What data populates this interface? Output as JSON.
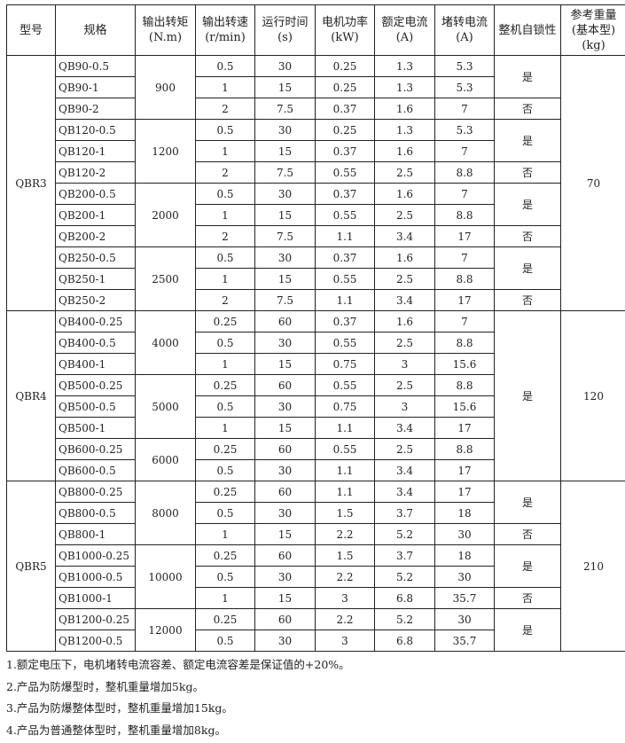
{
  "headers": [
    "型号",
    "规格",
    "输出转矩\n(N.m)",
    "输出转速\n(r/min)",
    "运行时间\n(s)",
    "电机功率\n(kW)",
    "额定电流\n(A)",
    "堵转电流\n(A)",
    "整机自锁性",
    "参考重量\n(基本型)\n(kg)"
  ],
  "rows": [
    [
      "QB90-0.5",
      "0.5",
      "30",
      "0.25",
      "1.3",
      "5.3"
    ],
    [
      "QB90-1",
      "1",
      "15",
      "0.25",
      "1.3",
      "5.3"
    ],
    [
      "QB90-2",
      "2",
      "7.5",
      "0.37",
      "1.6",
      "7"
    ],
    [
      "QB120-0.5",
      "0.5",
      "30",
      "0.25",
      "1.3",
      "5.3"
    ],
    [
      "QB120-1",
      "1",
      "15",
      "0.37",
      "1.6",
      "7"
    ],
    [
      "QB120-2",
      "2",
      "7.5",
      "0.55",
      "2.5",
      "8.8"
    ],
    [
      "QB200-0.5",
      "0.5",
      "30",
      "0.37",
      "1.6",
      "7"
    ],
    [
      "QB200-1",
      "1",
      "15",
      "0.55",
      "2.5",
      "8.8"
    ],
    [
      "QB200-2",
      "2",
      "7.5",
      "1.1",
      "3.4",
      "17"
    ],
    [
      "QB250-0.5",
      "0.5",
      "30",
      "0.37",
      "1.6",
      "7"
    ],
    [
      "QB250-1",
      "1",
      "15",
      "0.55",
      "2.5",
      "8.8"
    ],
    [
      "QB250-2",
      "2",
      "7.5",
      "1.1",
      "3.4",
      "17"
    ],
    [
      "QB400-0.25",
      "0.25",
      "60",
      "0.37",
      "1.6",
      "7"
    ],
    [
      "QB400-0.5",
      "0.5",
      "30",
      "0.55",
      "2.5",
      "8.8"
    ],
    [
      "QB400-1",
      "1",
      "15",
      "0.75",
      "3",
      "15.6"
    ],
    [
      "QB500-0.25",
      "0.25",
      "60",
      "0.55",
      "2.5",
      "8.8"
    ],
    [
      "QB500-0.5",
      "0.5",
      "30",
      "0.75",
      "3",
      "15.6"
    ],
    [
      "QB500-1",
      "1",
      "15",
      "1.1",
      "3.4",
      "17"
    ],
    [
      "QB600-0.25",
      "0.25",
      "60",
      "0.55",
      "2.5",
      "8.8"
    ],
    [
      "QB600-0.5",
      "0.5",
      "30",
      "1.1",
      "3.4",
      "17"
    ],
    [
      "QB800-0.25",
      "0.25",
      "60",
      "1.1",
      "3.4",
      "17"
    ],
    [
      "QB800-0.5",
      "0.5",
      "30",
      "1.5",
      "3.7",
      "18"
    ],
    [
      "QB800-1",
      "1",
      "15",
      "2.2",
      "5.2",
      "30"
    ],
    [
      "QB1000-0.25",
      "0.25",
      "60",
      "1.5",
      "3.7",
      "18"
    ],
    [
      "QB1000-0.5",
      "0.5",
      "30",
      "2.2",
      "5.2",
      "30"
    ],
    [
      "QB1000-1",
      "1",
      "15",
      "3",
      "6.8",
      "35.7"
    ],
    [
      "QB1200-0.25",
      "0.25",
      "60",
      "2.2",
      "5.2",
      "30"
    ],
    [
      "QB1200-0.5",
      "0.5",
      "30",
      "3",
      "6.8",
      "35.7"
    ]
  ],
  "models": [
    {
      "value": "QBR3",
      "span": 12
    },
    {
      "value": "QBR4",
      "span": 8
    },
    {
      "value": "QBR5",
      "span": 8
    }
  ],
  "torques": [
    {
      "value": "900",
      "span": 3
    },
    {
      "value": "1200",
      "span": 3
    },
    {
      "value": "2000",
      "span": 3
    },
    {
      "value": "2500",
      "span": 3
    },
    {
      "value": "4000",
      "span": 3
    },
    {
      "value": "5000",
      "span": 3
    },
    {
      "value": "6000",
      "span": 2
    },
    {
      "value": "8000",
      "span": 3
    },
    {
      "value": "10000",
      "span": 3
    },
    {
      "value": "12000",
      "span": 2
    }
  ],
  "locks": [
    {
      "value": "是",
      "span": 2
    },
    {
      "value": "否",
      "span": 1
    },
    {
      "value": "是",
      "span": 2
    },
    {
      "value": "否",
      "span": 1
    },
    {
      "value": "是",
      "span": 2
    },
    {
      "value": "否",
      "span": 1
    },
    {
      "value": "是",
      "span": 2
    },
    {
      "value": "否",
      "span": 1
    },
    {
      "value": "是",
      "span": 8
    },
    {
      "value": "是",
      "span": 2
    },
    {
      "value": "否",
      "span": 1
    },
    {
      "value": "是",
      "span": 2
    },
    {
      "value": "否",
      "span": 1
    },
    {
      "value": "是",
      "span": 2
    }
  ],
  "weights": [
    {
      "value": "70",
      "span": 12
    },
    {
      "value": "120",
      "span": 8
    },
    {
      "value": "210",
      "span": 8
    }
  ],
  "notes": [
    "1.额定电压下，电机堵转电流容差、额定电流容差是保证值的+20%。",
    "2.产品为防爆型时，整机重量增加5kg。",
    "3.产品为防爆整体型时，整机重量增加15kg。",
    "4.产品为普通整体型时，整机重量增加8kg。"
  ]
}
